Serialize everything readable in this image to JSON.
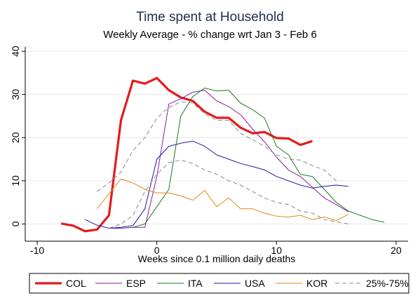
{
  "chart_data": {
    "type": "line",
    "title": "Time spent at Household",
    "subtitle": "Weekly Average - % change wrt Jan 3 - Feb 6",
    "xlabel": "Weeks since 0.1 million daily deaths",
    "ylabel": "",
    "xlim": [
      -11,
      21
    ],
    "ylim": [
      -4,
      41
    ],
    "xticks": [
      -10,
      0,
      10,
      20
    ],
    "yticks": [
      0,
      10,
      20,
      30,
      40
    ],
    "grid": "horizontal",
    "legend_position": "bottom",
    "series": [
      {
        "name": "COL",
        "color": "#e41a1c",
        "style": "bold",
        "x": [
          -8,
          -7,
          -6,
          -5,
          -4,
          -3,
          -2,
          -1,
          0,
          1,
          2,
          3,
          4,
          5,
          6,
          7,
          8,
          9,
          10,
          11,
          12,
          13
        ],
        "y": [
          0.1,
          -0.4,
          -1.7,
          -1.3,
          2.0,
          24.0,
          33.2,
          32.5,
          33.8,
          31.0,
          29.3,
          28.5,
          26.0,
          24.6,
          24.6,
          22.3,
          21.0,
          21.3,
          19.9,
          19.8,
          18.3,
          19.2
        ]
      },
      {
        "name": "ESP",
        "color": "#8b1a9e",
        "style": "thin",
        "x": [
          -4,
          -3,
          -2,
          -1,
          0,
          1,
          2,
          3,
          4,
          5,
          6,
          7,
          8,
          9,
          10,
          11,
          12,
          13,
          14,
          15,
          16
        ],
        "y": [
          -1.0,
          -1.0,
          -0.8,
          -0.8,
          11.0,
          27.8,
          29.0,
          30.5,
          31.0,
          28.5,
          27.2,
          25.3,
          22.0,
          19.0,
          15.5,
          12.5,
          11.0,
          8.5,
          6.0,
          4.5,
          2.8
        ]
      },
      {
        "name": "ITA",
        "color": "#1a7a1a",
        "style": "thin",
        "x": [
          -2,
          -1,
          0,
          1,
          2,
          3,
          4,
          5,
          6,
          7,
          8,
          9,
          10,
          11,
          12,
          13,
          14,
          15,
          16,
          17,
          18,
          19
        ],
        "y": [
          -0.8,
          0.0,
          4.0,
          8.0,
          25.0,
          29.5,
          31.5,
          30.8,
          31.0,
          28.0,
          26.5,
          24.5,
          18.0,
          16.0,
          11.5,
          11.0,
          8.0,
          5.0,
          3.0,
          2.0,
          1.0,
          0.4
        ]
      },
      {
        "name": "USA",
        "color": "#1a1aa8",
        "style": "thin",
        "x": [
          -6,
          -5,
          -4,
          -3,
          -2,
          -1,
          0,
          1,
          2,
          3,
          4,
          5,
          6,
          7,
          8,
          9,
          10,
          11,
          12,
          13,
          14,
          15,
          16
        ],
        "y": [
          1.0,
          -0.3,
          -1.0,
          -0.8,
          -0.4,
          3.5,
          15.0,
          18.0,
          18.7,
          19.2,
          18.0,
          16.0,
          15.0,
          14.0,
          13.3,
          12.5,
          11.0,
          10.0,
          9.0,
          8.3,
          8.7,
          9.0,
          8.7
        ]
      },
      {
        "name": "KOR",
        "color": "#e08a16",
        "style": "thin",
        "x": [
          -5,
          -4,
          -3,
          -2,
          -1,
          0,
          1,
          2,
          3,
          4,
          5,
          6,
          7,
          8,
          9,
          10,
          11,
          12,
          13,
          14,
          15,
          16
        ],
        "y": [
          3.5,
          7.0,
          10.4,
          9.5,
          8.0,
          7.2,
          7.2,
          6.5,
          5.5,
          7.8,
          4.0,
          6.0,
          3.5,
          3.5,
          2.5,
          1.8,
          1.6,
          2.0,
          1.0,
          1.6,
          0.8,
          2.2
        ]
      },
      {
        "name": "25%-75%",
        "color": "#888888",
        "style": "dashed",
        "x": [
          -5,
          -4,
          -3,
          -2,
          -1,
          0,
          1,
          2,
          3,
          4,
          5,
          6,
          7,
          8,
          9,
          10,
          11,
          12,
          13,
          14,
          15
        ],
        "y": [
          7.5,
          9.5,
          12.0,
          17.0,
          20.0,
          24.5,
          27.0,
          28.3,
          28.0,
          25.5,
          24.0,
          24.0,
          21.0,
          19.5,
          18.0,
          16.0,
          15.0,
          14.8,
          13.5,
          12.5,
          10.0
        ]
      },
      {
        "name": "25%-75%",
        "color": "#888888",
        "style": "dashed",
        "show_in_legend": false,
        "x": [
          -4,
          -3,
          -2,
          -1,
          0,
          1,
          2,
          3,
          4,
          5,
          6,
          7,
          8,
          9,
          10,
          11,
          12,
          13,
          14,
          15,
          16
        ],
        "y": [
          -1.0,
          0.0,
          2.0,
          7.5,
          11.5,
          14.2,
          14.8,
          14.0,
          12.5,
          11.5,
          10.0,
          9.0,
          7.5,
          6.0,
          5.0,
          4.5,
          3.0,
          2.5,
          1.0,
          0.5,
          0.0
        ]
      }
    ]
  }
}
